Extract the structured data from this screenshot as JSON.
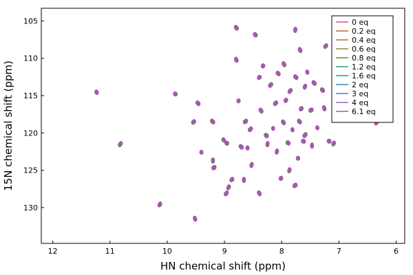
{
  "chart_data": {
    "type": "scatter",
    "title": "",
    "xlabel": "HN chemical shift (ppm)",
    "ylabel": "15N chemical shift (ppm)",
    "xlim": [
      12.2,
      5.85
    ],
    "ylim": [
      103.3,
      134.8
    ],
    "x_reversed": true,
    "y_reversed": true,
    "xticks": [
      12,
      11,
      10,
      9,
      8,
      7,
      6
    ],
    "yticks": [
      105,
      110,
      115,
      120,
      125,
      130
    ],
    "grid": false,
    "legend_position": "top-right",
    "series": [
      {
        "name": "0 eq",
        "color": "#c8588a"
      },
      {
        "name": "0.2 eq",
        "color": "#c4662e"
      },
      {
        "name": "0.4 eq",
        "color": "#a9772f"
      },
      {
        "name": "0.6 eq",
        "color": "#8f8a2e"
      },
      {
        "name": "0.8 eq",
        "color": "#4f9a2a"
      },
      {
        "name": "1.2 eq",
        "color": "#2a9d72"
      },
      {
        "name": "1.6 eq",
        "color": "#2797a0"
      },
      {
        "name": "2 eq",
        "color": "#2b8fb3"
      },
      {
        "name": "3 eq",
        "color": "#4c80c8"
      },
      {
        "name": "4 eq",
        "color": "#9a66c4"
      },
      {
        "name": "6.1 eq",
        "color": "#b84fb0"
      }
    ],
    "peaks": [
      {
        "x": 11.24,
        "y": 114.5
      },
      {
        "x": 10.83,
        "y": 121.6
      },
      {
        "x": 10.12,
        "y": 129.5
      },
      {
        "x": 9.85,
        "y": 114.8
      },
      {
        "x": 9.55,
        "y": 118.6
      },
      {
        "x": 9.52,
        "y": 131.4
      },
      {
        "x": 9.45,
        "y": 116.1
      },
      {
        "x": 9.4,
        "y": 122.6
      },
      {
        "x": 9.22,
        "y": 118.4
      },
      {
        "x": 9.2,
        "y": 123.8
      },
      {
        "x": 9.17,
        "y": 124.6
      },
      {
        "x": 9.02,
        "y": 120.9
      },
      {
        "x": 8.98,
        "y": 128.2
      },
      {
        "x": 8.92,
        "y": 127.2
      },
      {
        "x": 8.95,
        "y": 121.4
      },
      {
        "x": 8.88,
        "y": 126.3
      },
      {
        "x": 8.8,
        "y": 110.1
      },
      {
        "x": 8.78,
        "y": 106.0
      },
      {
        "x": 8.75,
        "y": 115.7
      },
      {
        "x": 8.72,
        "y": 121.8
      },
      {
        "x": 8.66,
        "y": 126.4
      },
      {
        "x": 8.62,
        "y": 118.4
      },
      {
        "x": 8.6,
        "y": 122.0
      },
      {
        "x": 8.56,
        "y": 119.6
      },
      {
        "x": 8.52,
        "y": 124.2
      },
      {
        "x": 8.45,
        "y": 106.9
      },
      {
        "x": 8.4,
        "y": 112.6
      },
      {
        "x": 8.4,
        "y": 128.0
      },
      {
        "x": 8.35,
        "y": 117.1
      },
      {
        "x": 8.32,
        "y": 111.0
      },
      {
        "x": 8.28,
        "y": 120.3
      },
      {
        "x": 8.25,
        "y": 121.6
      },
      {
        "x": 8.18,
        "y": 113.5
      },
      {
        "x": 8.15,
        "y": 119.4
      },
      {
        "x": 8.12,
        "y": 116.1
      },
      {
        "x": 8.08,
        "y": 122.4
      },
      {
        "x": 8.05,
        "y": 112.1
      },
      {
        "x": 8.02,
        "y": 126.1
      },
      {
        "x": 7.98,
        "y": 118.5
      },
      {
        "x": 7.95,
        "y": 110.9
      },
      {
        "x": 7.92,
        "y": 115.6
      },
      {
        "x": 7.9,
        "y": 121.3
      },
      {
        "x": 7.87,
        "y": 125.1
      },
      {
        "x": 7.84,
        "y": 114.3
      },
      {
        "x": 7.81,
        "y": 119.6
      },
      {
        "x": 7.78,
        "y": 127.1
      },
      {
        "x": 7.76,
        "y": 106.1
      },
      {
        "x": 7.74,
        "y": 112.6
      },
      {
        "x": 7.72,
        "y": 123.4
      },
      {
        "x": 7.7,
        "y": 118.4
      },
      {
        "x": 7.67,
        "y": 109.0
      },
      {
        "x": 7.65,
        "y": 116.7
      },
      {
        "x": 7.63,
        "y": 121.1
      },
      {
        "x": 7.6,
        "y": 113.9
      },
      {
        "x": 7.58,
        "y": 120.2
      },
      {
        "x": 7.55,
        "y": 111.9
      },
      {
        "x": 7.5,
        "y": 117.0
      },
      {
        "x": 7.47,
        "y": 121.6
      },
      {
        "x": 7.42,
        "y": 113.4
      },
      {
        "x": 7.38,
        "y": 119.3
      },
      {
        "x": 7.3,
        "y": 114.2
      },
      {
        "x": 7.25,
        "y": 116.8
      },
      {
        "x": 7.22,
        "y": 108.3
      },
      {
        "x": 7.18,
        "y": 121.1
      },
      {
        "x": 7.1,
        "y": 121.5
      },
      {
        "x": 6.33,
        "y": 118.5
      }
    ]
  }
}
